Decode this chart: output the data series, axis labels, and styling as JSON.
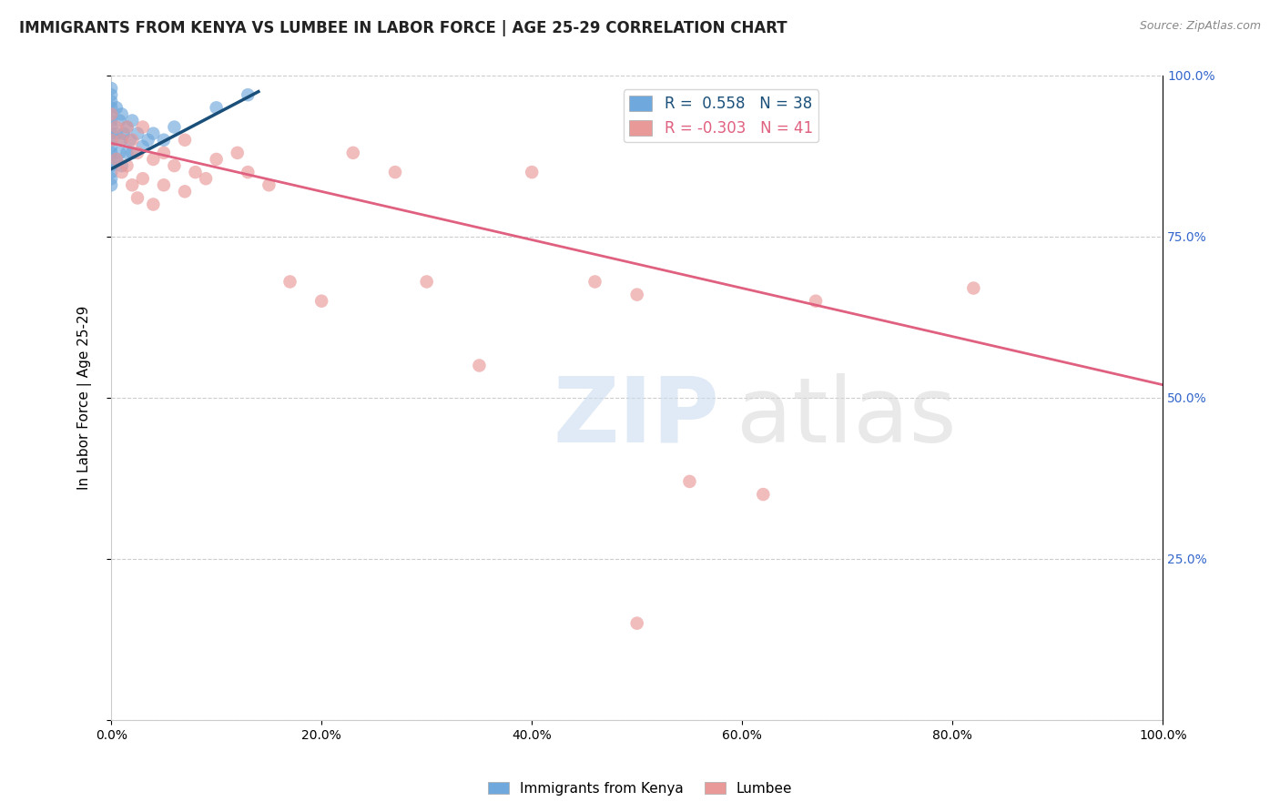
{
  "title": "IMMIGRANTS FROM KENYA VS LUMBEE IN LABOR FORCE | AGE 25-29 CORRELATION CHART",
  "source": "Source: ZipAtlas.com",
  "ylabel": "In Labor Force | Age 25-29",
  "xlim": [
    0.0,
    1.0
  ],
  "ylim": [
    0.0,
    1.0
  ],
  "xticks": [
    0.0,
    0.2,
    0.4,
    0.6,
    0.8,
    1.0
  ],
  "yticks": [
    0.0,
    0.25,
    0.5,
    0.75,
    1.0
  ],
  "xtick_labels": [
    "0.0%",
    "20.0%",
    "40.0%",
    "60.0%",
    "80.0%",
    "100.0%"
  ],
  "ytick_labels_right": [
    "",
    "25.0%",
    "50.0%",
    "75.0%",
    "100.0%"
  ],
  "kenya_color": "#6fa8dc",
  "lumbee_color": "#ea9999",
  "kenya_line_color": "#1a4f79",
  "lumbee_line_color": "#e06080",
  "kenya_R": 0.558,
  "kenya_N": 38,
  "lumbee_R": -0.303,
  "lumbee_N": 41,
  "legend_kenya": "Immigrants from Kenya",
  "legend_lumbee": "Lumbee",
  "background_color": "#ffffff",
  "kenya_x": [
    0.0,
    0.0,
    0.0,
    0.0,
    0.0,
    0.0,
    0.0,
    0.0,
    0.0,
    0.0,
    0.0,
    0.0,
    0.0,
    0.0,
    0.0,
    0.0,
    0.005,
    0.005,
    0.005,
    0.008,
    0.008,
    0.01,
    0.01,
    0.01,
    0.012,
    0.015,
    0.015,
    0.018,
    0.02,
    0.02,
    0.025,
    0.03,
    0.035,
    0.04,
    0.05,
    0.06,
    0.1,
    0.13
  ],
  "kenya_y": [
    0.98,
    0.97,
    0.96,
    0.95,
    0.94,
    0.93,
    0.92,
    0.91,
    0.9,
    0.89,
    0.88,
    0.87,
    0.86,
    0.85,
    0.84,
    0.83,
    0.95,
    0.91,
    0.87,
    0.93,
    0.88,
    0.94,
    0.9,
    0.86,
    0.91,
    0.92,
    0.88,
    0.9,
    0.93,
    0.88,
    0.91,
    0.89,
    0.9,
    0.91,
    0.9,
    0.92,
    0.95,
    0.97
  ],
  "lumbee_x": [
    0.0,
    0.0,
    0.005,
    0.005,
    0.01,
    0.01,
    0.015,
    0.015,
    0.02,
    0.02,
    0.025,
    0.025,
    0.03,
    0.03,
    0.04,
    0.04,
    0.05,
    0.05,
    0.06,
    0.07,
    0.07,
    0.08,
    0.09,
    0.1,
    0.12,
    0.13,
    0.15,
    0.17,
    0.2,
    0.23,
    0.27,
    0.3,
    0.35,
    0.4,
    0.46,
    0.5,
    0.55,
    0.62,
    0.67,
    0.82,
    0.5
  ],
  "lumbee_y": [
    0.94,
    0.9,
    0.92,
    0.87,
    0.9,
    0.85,
    0.92,
    0.86,
    0.9,
    0.83,
    0.88,
    0.81,
    0.92,
    0.84,
    0.87,
    0.8,
    0.88,
    0.83,
    0.86,
    0.9,
    0.82,
    0.85,
    0.84,
    0.87,
    0.88,
    0.85,
    0.83,
    0.68,
    0.65,
    0.88,
    0.85,
    0.68,
    0.55,
    0.85,
    0.68,
    0.66,
    0.37,
    0.35,
    0.65,
    0.67,
    0.15
  ],
  "kenya_line_x": [
    0.0,
    0.14
  ],
  "kenya_line_y_start": 0.855,
  "kenya_line_y_end": 0.975,
  "lumbee_line_x": [
    0.0,
    1.0
  ],
  "lumbee_line_y_start": 0.895,
  "lumbee_line_y_end": 0.52
}
